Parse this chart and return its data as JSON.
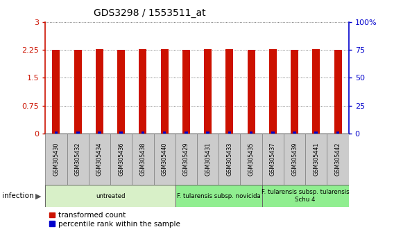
{
  "title": "GDS3298 / 1553511_at",
  "samples": [
    "GSM305430",
    "GSM305432",
    "GSM305434",
    "GSM305436",
    "GSM305438",
    "GSM305440",
    "GSM305429",
    "GSM305431",
    "GSM305433",
    "GSM305435",
    "GSM305437",
    "GSM305439",
    "GSM305441",
    "GSM305442"
  ],
  "red_values": [
    2.26,
    2.26,
    2.27,
    2.26,
    2.27,
    2.27,
    2.26,
    2.27,
    2.27,
    2.26,
    2.28,
    2.26,
    2.27,
    2.26
  ],
  "blue_values_pct": [
    2,
    2,
    2,
    2,
    2,
    2,
    2,
    2,
    2,
    2,
    2,
    2,
    2,
    2
  ],
  "ylim_left": [
    0,
    3
  ],
  "ylim_right": [
    0,
    100
  ],
  "yticks_left": [
    0,
    0.75,
    1.5,
    2.25,
    3
  ],
  "yticks_right": [
    0,
    25,
    50,
    75,
    100
  ],
  "ytick_labels_left": [
    "0",
    "0.75",
    "1.5",
    "2.25",
    "3"
  ],
  "ytick_labels_right": [
    "0",
    "25",
    "50",
    "75",
    "100%"
  ],
  "groups": [
    {
      "label": "untreated",
      "start": 0,
      "end": 6,
      "color": "#d8f0c8"
    },
    {
      "label": "F. tularensis subsp. novicida",
      "start": 6,
      "end": 10,
      "color": "#90ee90"
    },
    {
      "label": "F. tularensis subsp. tularensis\nSchu 4",
      "start": 10,
      "end": 14,
      "color": "#90ee90"
    }
  ],
  "infection_label": "infection",
  "legend_red": "transformed count",
  "legend_blue": "percentile rank within the sample",
  "bar_color_red": "#cc1100",
  "bar_color_blue": "#0000cc",
  "title_color": "#333333",
  "left_axis_color": "#cc1100",
  "right_axis_color": "#0000cc",
  "bar_width": 0.35,
  "blue_bar_width": 0.15
}
